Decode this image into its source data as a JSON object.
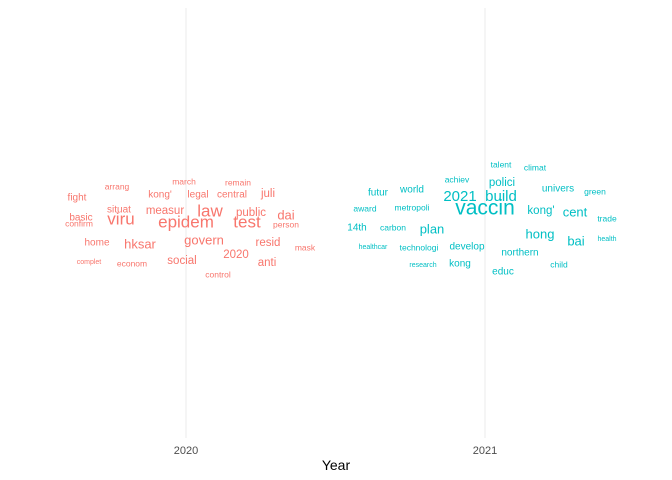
{
  "chart_data": {
    "type": "wordcloud",
    "title": "",
    "xlabel": "Year",
    "ylabel": "",
    "grid": true,
    "legend": "none",
    "categories": [
      "2020",
      "2021"
    ],
    "series": [
      {
        "category": "2020",
        "color": "#F8766D",
        "words": [
          {
            "text": "march",
            "size": 1
          },
          {
            "text": "remain",
            "size": 1
          },
          {
            "text": "arrang",
            "size": 1
          },
          {
            "text": "juli",
            "size": 3
          },
          {
            "text": "fight",
            "size": 2
          },
          {
            "text": "kong'",
            "size": 2
          },
          {
            "text": "legal",
            "size": 2
          },
          {
            "text": "central",
            "size": 2
          },
          {
            "text": "situat",
            "size": 2
          },
          {
            "text": "measur",
            "size": 3
          },
          {
            "text": "law",
            "size": 6
          },
          {
            "text": "public",
            "size": 3
          },
          {
            "text": "dai",
            "size": 4
          },
          {
            "text": "basic",
            "size": 2
          },
          {
            "text": "viru",
            "size": 6
          },
          {
            "text": "epidem",
            "size": 6
          },
          {
            "text": "test",
            "size": 6
          },
          {
            "text": "confirm",
            "size": 1
          },
          {
            "text": "person",
            "size": 1
          },
          {
            "text": "govern",
            "size": 4
          },
          {
            "text": "home",
            "size": 2
          },
          {
            "text": "hksar",
            "size": 4
          },
          {
            "text": "resid",
            "size": 3
          },
          {
            "text": "mask",
            "size": 1
          },
          {
            "text": "2020",
            "size": 3
          },
          {
            "text": "social",
            "size": 3
          },
          {
            "text": "anti",
            "size": 3
          },
          {
            "text": "complet",
            "size": 0
          },
          {
            "text": "econom",
            "size": 1
          },
          {
            "text": "control",
            "size": 1
          }
        ]
      },
      {
        "category": "2021",
        "color": "#00BFC4",
        "words": [
          {
            "text": "talent",
            "size": 1
          },
          {
            "text": "climat",
            "size": 1
          },
          {
            "text": "achiev",
            "size": 1
          },
          {
            "text": "polici",
            "size": 3
          },
          {
            "text": "futur",
            "size": 2
          },
          {
            "text": "world",
            "size": 2
          },
          {
            "text": "univers",
            "size": 2
          },
          {
            "text": "green",
            "size": 1
          },
          {
            "text": "2021",
            "size": 5
          },
          {
            "text": "build",
            "size": 5
          },
          {
            "text": "award",
            "size": 1
          },
          {
            "text": "metropoli",
            "size": 1
          },
          {
            "text": "vaccin",
            "size": 7
          },
          {
            "text": "kong'",
            "size": 3
          },
          {
            "text": "cent",
            "size": 4
          },
          {
            "text": "trade",
            "size": 1
          },
          {
            "text": "14th",
            "size": 2
          },
          {
            "text": "carbon",
            "size": 1
          },
          {
            "text": "plan",
            "size": 4
          },
          {
            "text": "hong",
            "size": 4
          },
          {
            "text": "health",
            "size": 0
          },
          {
            "text": "healthcar",
            "size": 0
          },
          {
            "text": "technologi",
            "size": 1
          },
          {
            "text": "develop",
            "size": 2
          },
          {
            "text": "bai",
            "size": 4
          },
          {
            "text": "northern",
            "size": 2
          },
          {
            "text": "research",
            "size": 0
          },
          {
            "text": "kong",
            "size": 2
          },
          {
            "text": "child",
            "size": 1
          },
          {
            "text": "educ",
            "size": 2
          }
        ]
      }
    ]
  }
}
